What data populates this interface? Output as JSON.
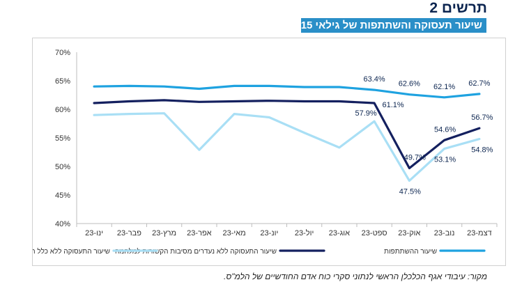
{
  "figure": {
    "title": "תרשים 2",
    "subtitle": "שיעור תעסוקה והשתתפות של גילאי 15+",
    "source": "מקור: עיבודי אגף הכלכלן הראשי לנתוני סקרי כוח אדם החודשיים של הלמ\"ס."
  },
  "chart_data": {
    "type": "line",
    "categories": [
      "ינו-23",
      "פבר-23",
      "מרץ-23",
      "אפר-23",
      "מאי-23",
      "יונ-23",
      "יול-23",
      "אוג-23",
      "ספט-23",
      "אוק-23",
      "נוב-23",
      "דצמ-23"
    ],
    "ylim": [
      40,
      70
    ],
    "yticks": [
      "40%",
      "45%",
      "50%",
      "55%",
      "60%",
      "65%",
      "70%"
    ],
    "grid": false,
    "legend_position": "bottom",
    "series": [
      {
        "name": "שיעור ההשתתפות",
        "color": "#1ea2e0",
        "width": 3.2,
        "values": [
          64.0,
          64.1,
          64.0,
          63.6,
          64.1,
          64.1,
          63.9,
          63.9,
          63.4,
          62.6,
          62.1,
          62.7
        ]
      },
      {
        "name": "שיעור התעסוקה ללא נעדרים מסיבות הקשורות למלחמה",
        "color": "#14205f",
        "width": 3.2,
        "values": [
          61.1,
          61.4,
          61.6,
          61.3,
          61.4,
          61.5,
          61.4,
          61.4,
          61.1,
          49.7,
          54.6,
          56.7
        ]
      },
      {
        "name": "שיעור התעסוקה ללא כלל הנעדרים",
        "color": "#a9dff5",
        "width": 3.2,
        "values": [
          59.0,
          59.2,
          59.3,
          52.9,
          59.2,
          58.6,
          55.9,
          53.3,
          57.9,
          47.5,
          53.1,
          54.8
        ]
      }
    ],
    "data_labels": [
      {
        "series": 0,
        "index": 8,
        "text": "63.4%"
      },
      {
        "series": 0,
        "index": 9,
        "text": "62.6%"
      },
      {
        "series": 0,
        "index": 10,
        "text": "62.1%"
      },
      {
        "series": 0,
        "index": 11,
        "text": "62.7%"
      },
      {
        "series": 1,
        "index": 8,
        "text": "61.1%"
      },
      {
        "series": 1,
        "index": 9,
        "text": "49.7%"
      },
      {
        "series": 1,
        "index": 10,
        "text": "54.6%"
      },
      {
        "series": 1,
        "index": 11,
        "text": "56.7%"
      },
      {
        "series": 2,
        "index": 8,
        "text": "57.9%"
      },
      {
        "series": 2,
        "index": 9,
        "text": "47.5%"
      },
      {
        "series": 2,
        "index": 10,
        "text": "53.1%"
      },
      {
        "series": 2,
        "index": 11,
        "text": "54.8%"
      }
    ]
  }
}
